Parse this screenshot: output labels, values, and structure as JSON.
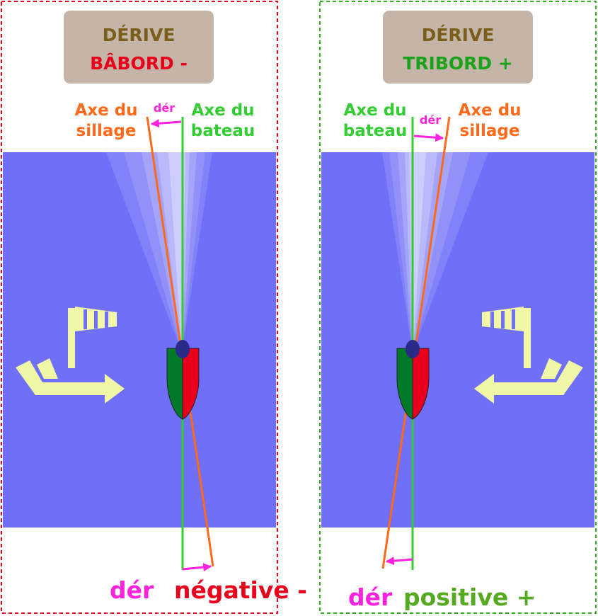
{
  "colors": {
    "water": "#6f6ff8",
    "port_red": "#e8001c",
    "starboard_green": "#007a28",
    "wake_axis_orange": "#ff6a1a",
    "boat_axis_green": "#33cc33",
    "drift_magenta": "#ff22dd",
    "header_box": "#c4b5a8",
    "header_title": "#7a5e1c",
    "wind_arrow": "#f0f8a8",
    "border_left": "#e8001c",
    "border_right": "#33aa22"
  },
  "left": {
    "header": {
      "title": "DÉRIVE",
      "subtitle": "BÂBORD -"
    },
    "wake_axis_label": [
      "Axe du",
      "sillage"
    ],
    "boat_axis_label": [
      "Axe du",
      "bateau"
    ],
    "drift_small": "dér",
    "footer": {
      "der": "dér",
      "sign": "négative -"
    },
    "icons": [
      "windsock-icon",
      "wind-arrow-right-icon",
      "boat-icon"
    ]
  },
  "right": {
    "header": {
      "title": "DÉRIVE",
      "subtitle": "TRIBORD +"
    },
    "boat_axis_label": [
      "Axe du",
      "bateau"
    ],
    "wake_axis_label": [
      "Axe du",
      "sillage"
    ],
    "drift_small": "dér",
    "footer": {
      "der": "dér",
      "sign": "positive +"
    },
    "icons": [
      "windsock-icon",
      "wind-arrow-left-icon",
      "boat-icon"
    ]
  }
}
